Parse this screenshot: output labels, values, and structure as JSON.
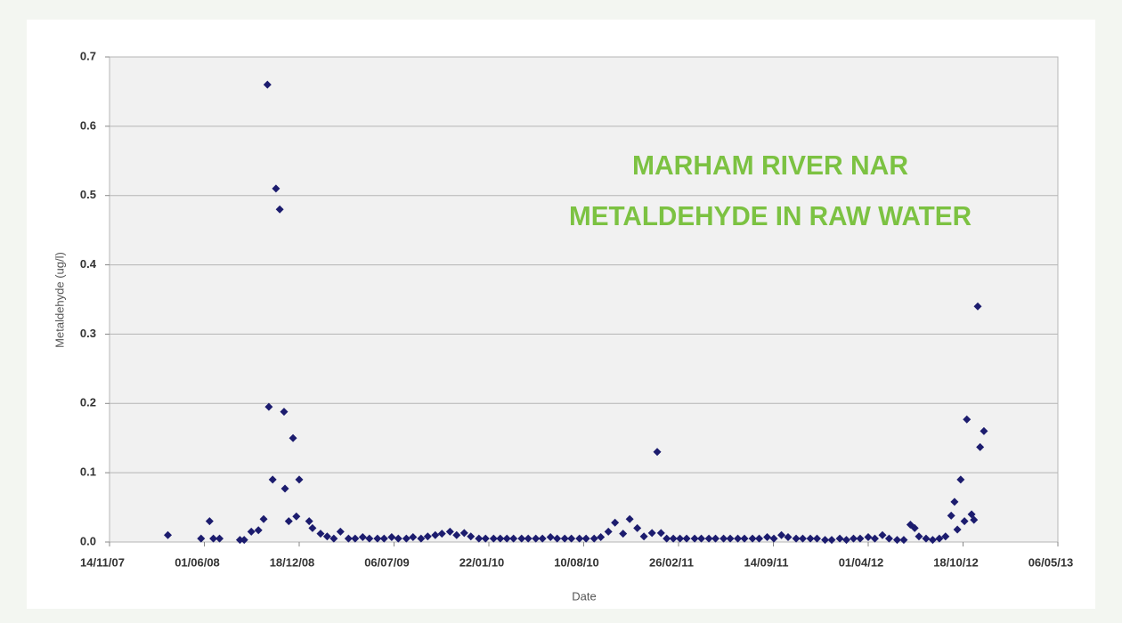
{
  "chart_data": {
    "type": "scatter",
    "title": [
      "MARHAM RIVER NAR",
      "METALDEHYDE IN RAW WATER"
    ],
    "x_label": "Date",
    "y_label": "Metaldehyde (ug/l)",
    "color": "#1c1c6e",
    "grid": true,
    "xlim": [
      "2007-11-14",
      "2013-05-06"
    ],
    "xticks": [
      {
        "value": "2007-11-14",
        "label": "14/11/07"
      },
      {
        "value": "2008-06-01",
        "label": "01/06/08"
      },
      {
        "value": "2008-12-18",
        "label": "18/12/08"
      },
      {
        "value": "2009-07-06",
        "label": "06/07/09"
      },
      {
        "value": "2010-01-22",
        "label": "22/01/10"
      },
      {
        "value": "2010-08-10",
        "label": "10/08/10"
      },
      {
        "value": "2011-02-26",
        "label": "26/02/11"
      },
      {
        "value": "2011-09-14",
        "label": "14/09/11"
      },
      {
        "value": "2012-04-01",
        "label": "01/04/12"
      },
      {
        "value": "2012-10-18",
        "label": "18/10/12"
      },
      {
        "value": "2013-05-06",
        "label": "06/05/13"
      }
    ],
    "ylim": [
      0,
      0.7
    ],
    "yticks": [
      {
        "value": 0,
        "label": "0.0"
      },
      0.1,
      0.2,
      0.3,
      0.4,
      0.5,
      0.6,
      0.7
    ],
    "x": [
      "2008-03-16",
      "2008-05-25",
      "2008-06-12",
      "2008-06-20",
      "2008-07-03",
      "2008-08-15",
      "2008-08-24",
      "2008-09-08",
      "2008-09-23",
      "2008-10-04",
      "2008-10-12",
      "2008-10-15",
      "2008-10-23",
      "2008-10-30",
      "2008-11-07",
      "2008-11-16",
      "2008-11-18",
      "2008-11-26",
      "2008-12-05",
      "2008-12-12",
      "2008-12-18",
      "2009-01-08",
      "2009-01-15",
      "2009-02-01",
      "2009-02-15",
      "2009-03-01",
      "2009-03-15",
      "2009-04-01",
      "2009-04-15",
      "2009-05-01",
      "2009-05-15",
      "2009-06-01",
      "2009-06-15",
      "2009-07-01",
      "2009-07-15",
      "2009-08-01",
      "2009-08-15",
      "2009-09-01",
      "2009-09-15",
      "2009-10-01",
      "2009-10-15",
      "2009-11-01",
      "2009-11-15",
      "2009-12-01",
      "2009-12-15",
      "2010-01-01",
      "2010-01-15",
      "2010-02-01",
      "2010-02-15",
      "2010-03-01",
      "2010-03-15",
      "2010-04-01",
      "2010-04-15",
      "2010-05-01",
      "2010-05-15",
      "2010-06-01",
      "2010-06-15",
      "2010-07-01",
      "2010-07-15",
      "2010-08-01",
      "2010-08-15",
      "2010-09-01",
      "2010-09-15",
      "2010-10-01",
      "2010-10-15",
      "2010-11-01",
      "2010-11-15",
      "2010-12-01",
      "2010-12-15",
      "2011-01-01",
      "2011-01-12",
      "2011-01-20",
      "2011-02-01",
      "2011-02-15",
      "2011-03-01",
      "2011-03-15",
      "2011-04-01",
      "2011-04-15",
      "2011-05-01",
      "2011-05-15",
      "2011-06-01",
      "2011-06-15",
      "2011-07-01",
      "2011-07-15",
      "2011-08-01",
      "2011-08-15",
      "2011-09-01",
      "2011-09-15",
      "2011-10-01",
      "2011-10-15",
      "2011-11-01",
      "2011-11-15",
      "2011-12-01",
      "2011-12-15",
      "2012-01-01",
      "2012-01-15",
      "2012-02-01",
      "2012-02-15",
      "2012-03-01",
      "2012-03-15",
      "2012-04-01",
      "2012-04-15",
      "2012-05-01",
      "2012-05-15",
      "2012-06-01",
      "2012-06-15",
      "2012-06-29",
      "2012-07-08",
      "2012-07-17",
      "2012-08-01",
      "2012-08-15",
      "2012-08-29",
      "2012-09-11",
      "2012-09-23",
      "2012-09-30",
      "2012-10-06",
      "2012-10-13",
      "2012-10-21",
      "2012-10-26",
      "2012-11-05",
      "2012-11-10",
      "2012-11-18",
      "2012-11-23",
      "2012-12-01"
    ],
    "values": [
      0.01,
      0.005,
      0.03,
      0.005,
      0.005,
      0.003,
      0.003,
      0.015,
      0.017,
      0.033,
      0.66,
      0.195,
      0.09,
      0.51,
      0.48,
      0.188,
      0.077,
      0.03,
      0.15,
      0.037,
      0.09,
      0.03,
      0.02,
      0.012,
      0.008,
      0.005,
      0.015,
      0.005,
      0.005,
      0.007,
      0.005,
      0.005,
      0.005,
      0.007,
      0.005,
      0.005,
      0.007,
      0.005,
      0.008,
      0.01,
      0.012,
      0.015,
      0.01,
      0.013,
      0.008,
      0.005,
      0.005,
      0.005,
      0.005,
      0.005,
      0.005,
      0.005,
      0.005,
      0.005,
      0.005,
      0.007,
      0.005,
      0.005,
      0.005,
      0.005,
      0.005,
      0.005,
      0.007,
      0.015,
      0.028,
      0.012,
      0.033,
      0.02,
      0.008,
      0.013,
      0.13,
      0.013,
      0.005,
      0.005,
      0.005,
      0.005,
      0.005,
      0.005,
      0.005,
      0.005,
      0.005,
      0.005,
      0.005,
      0.005,
      0.005,
      0.005,
      0.007,
      0.005,
      0.01,
      0.007,
      0.005,
      0.005,
      0.005,
      0.005,
      0.003,
      0.003,
      0.005,
      0.003,
      0.005,
      0.005,
      0.007,
      0.005,
      0.01,
      0.005,
      0.003,
      0.003,
      0.025,
      0.02,
      0.008,
      0.005,
      0.003,
      0.005,
      0.008,
      0.038,
      0.058,
      0.018,
      0.09,
      0.03,
      0.177,
      0.04,
      0.032,
      0.34,
      0.137,
      0.16
    ]
  }
}
